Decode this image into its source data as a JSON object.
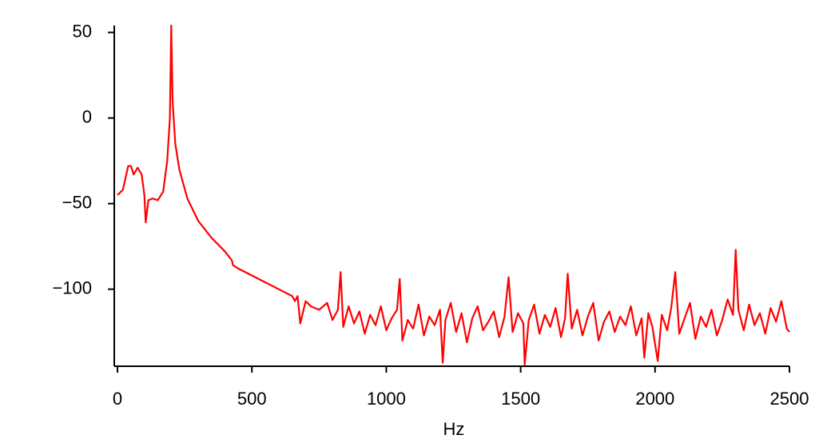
{
  "chart_data": {
    "type": "line",
    "x_label": "Hz",
    "color": "#ff0000",
    "x": [
      0,
      20,
      40,
      50,
      60,
      75,
      90,
      100,
      105,
      115,
      130,
      150,
      170,
      185,
      195,
      200,
      205,
      215,
      230,
      260,
      300,
      350,
      400,
      425,
      430,
      450,
      500,
      550,
      600,
      650,
      660,
      670,
      680,
      700,
      720,
      750,
      780,
      800,
      820,
      830,
      840,
      860,
      880,
      900,
      920,
      940,
      960,
      980,
      1000,
      1020,
      1040,
      1050,
      1060,
      1080,
      1100,
      1120,
      1140,
      1160,
      1180,
      1200,
      1210,
      1220,
      1240,
      1260,
      1280,
      1300,
      1320,
      1340,
      1360,
      1380,
      1400,
      1420,
      1440,
      1455,
      1470,
      1490,
      1510,
      1515,
      1530,
      1550,
      1570,
      1590,
      1610,
      1630,
      1650,
      1665,
      1675,
      1690,
      1710,
      1730,
      1750,
      1770,
      1790,
      1810,
      1830,
      1850,
      1870,
      1890,
      1910,
      1930,
      1950,
      1960,
      1975,
      1990,
      2010,
      2025,
      2045,
      2060,
      2075,
      2090,
      2110,
      2130,
      2150,
      2170,
      2190,
      2210,
      2230,
      2250,
      2270,
      2290,
      2300,
      2310,
      2330,
      2350,
      2370,
      2390,
      2410,
      2430,
      2450,
      2470,
      2490,
      2500
    ],
    "values": [
      -45,
      -42,
      -28,
      -28,
      -33,
      -29,
      -33,
      -45,
      -61,
      -48,
      -47,
      -48,
      -43,
      -25,
      0,
      54,
      10,
      -15,
      -30,
      -47,
      -60,
      -70,
      -78,
      -83,
      -86,
      -88,
      -92,
      -96,
      -100,
      -104,
      -107,
      -104,
      -120,
      -107,
      -110,
      -112,
      -108,
      -118,
      -112,
      -90,
      -122,
      -110,
      -120,
      -113,
      -126,
      -115,
      -121,
      -110,
      -124,
      -117,
      -112,
      -94,
      -130,
      -118,
      -123,
      -109,
      -127,
      -116,
      -121,
      -112,
      -143,
      -118,
      -108,
      -125,
      -114,
      -131,
      -117,
      -110,
      -124,
      -119,
      -113,
      -128,
      -116,
      -93,
      -125,
      -114,
      -120,
      -144,
      -118,
      -109,
      -126,
      -115,
      -122,
      -111,
      -128,
      -117,
      -91,
      -123,
      -112,
      -127,
      -116,
      -108,
      -130,
      -119,
      -113,
      -125,
      -116,
      -121,
      -110,
      -127,
      -117,
      -140,
      -114,
      -122,
      -142,
      -115,
      -124,
      -111,
      -90,
      -126,
      -117,
      -108,
      -129,
      -116,
      -122,
      -112,
      -127,
      -118,
      -106,
      -115,
      -77,
      -112,
      -124,
      -109,
      -121,
      -114,
      -126,
      -111,
      -119,
      -107,
      -123,
      -125
    ],
    "xlim": [
      -12,
      2500
    ],
    "xticks": [
      0,
      500,
      1000,
      1500,
      2000,
      2500
    ],
    "ylim": [
      -145,
      54
    ],
    "yticks": [
      50,
      0,
      {
        "value": -50,
        "label": "−50"
      },
      {
        "value": -100,
        "label": "−100"
      }
    ]
  }
}
